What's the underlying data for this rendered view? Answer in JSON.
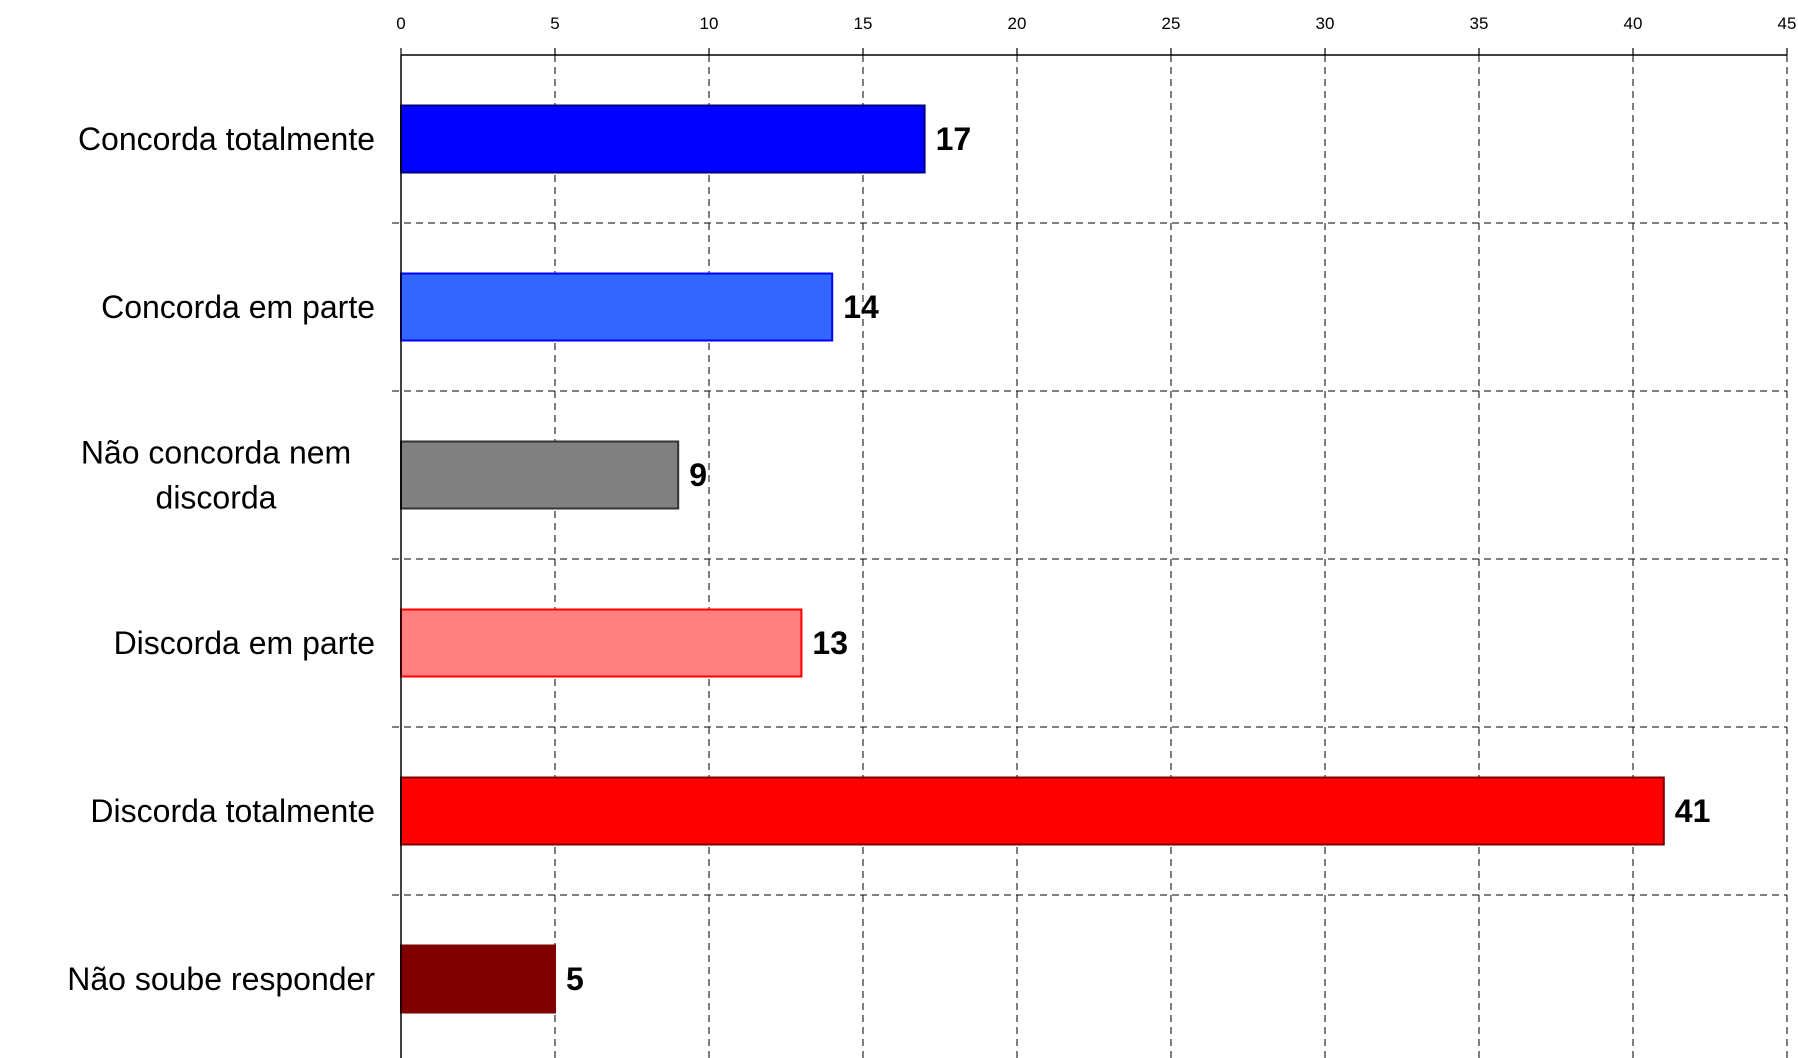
{
  "chart_data": {
    "type": "bar",
    "orientation": "horizontal",
    "categories": [
      "Concorda totalmente",
      "Concorda em parte",
      "Não concorda nem discorda",
      "Discorda em parte",
      "Discorda totalmente",
      "Não soube responder"
    ],
    "category_lines": [
      [
        "Concorda totalmente"
      ],
      [
        "Concorda em parte"
      ],
      [
        "Não concorda nem",
        "discorda"
      ],
      [
        "Discorda em parte"
      ],
      [
        "Discorda totalmente"
      ],
      [
        "Não soube responder"
      ]
    ],
    "values": [
      17,
      14,
      9,
      13,
      41,
      5
    ],
    "value_labels": [
      "17",
      "14",
      "9",
      "13",
      "41",
      "5"
    ],
    "bar_colors": [
      "#0000ff",
      "#3366ff",
      "#808080",
      "#ff8080",
      "#ff0000",
      "#800000"
    ],
    "bar_edge_colors": [
      "#000080",
      "#0000ff",
      "#333333",
      "#ff0000",
      "#800000",
      "#800000"
    ],
    "xlim": [
      0,
      45
    ],
    "xticks": [
      0,
      5,
      10,
      15,
      20,
      25,
      30,
      35,
      40,
      45
    ],
    "x_axis_position": "top",
    "grid": true,
    "grid_style": "dashed",
    "title": "",
    "xlabel": "",
    "ylabel": "",
    "legend": "none"
  }
}
